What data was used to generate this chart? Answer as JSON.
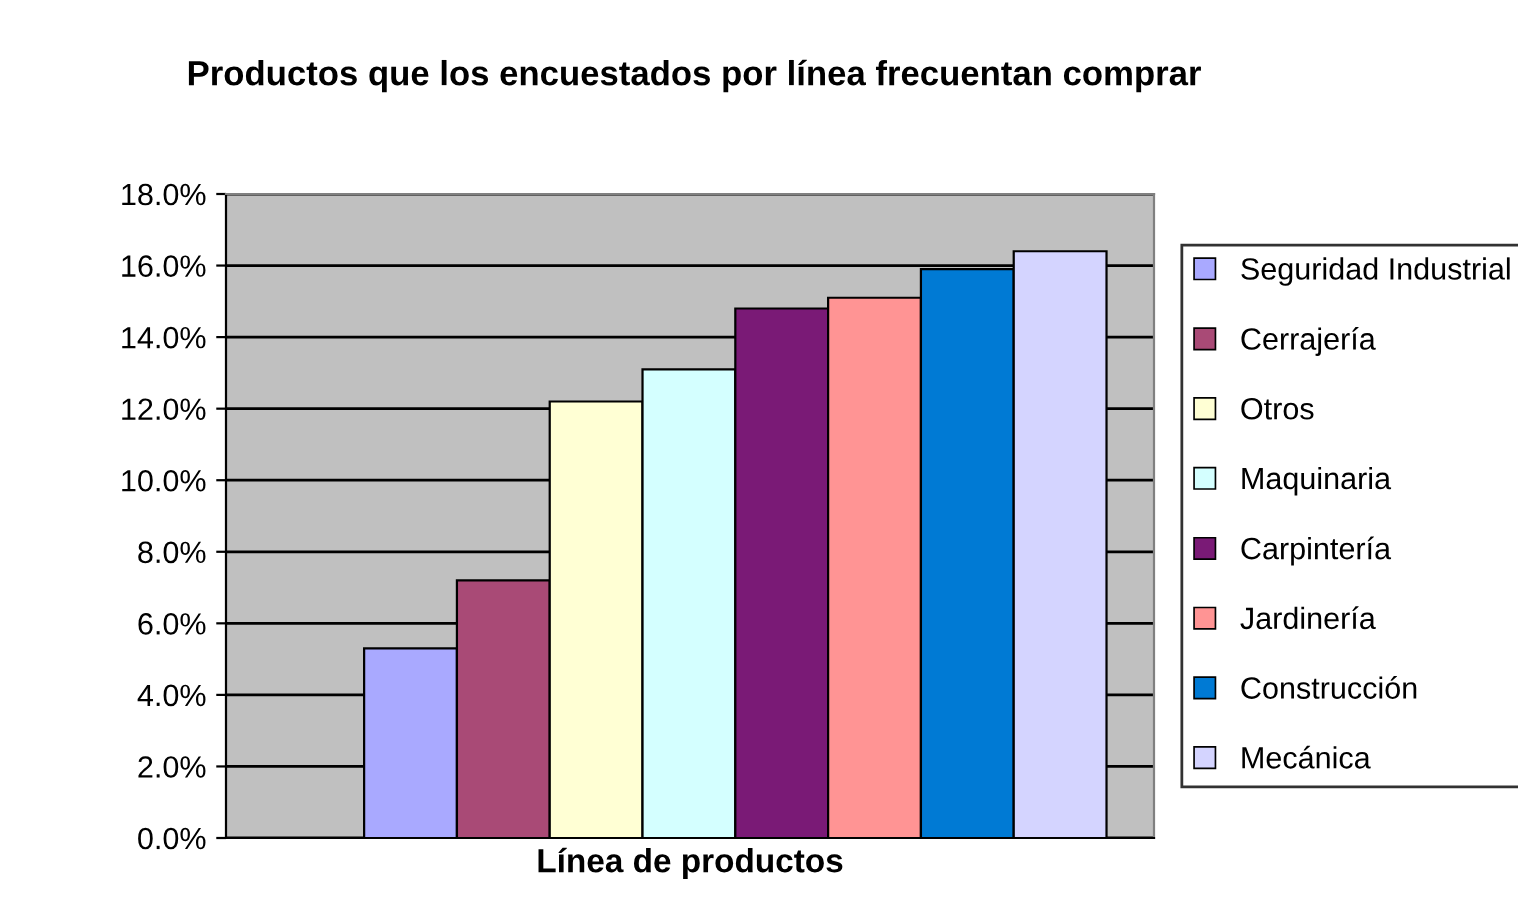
{
  "chart_data": {
    "type": "bar",
    "title": "Productos que los encuestados por línea frecuentan comprar",
    "xlabel": "Línea de productos",
    "categories": [
      null
    ],
    "series": [
      {
        "name": "Seguridad Industrial",
        "color": "#a9a9ff",
        "values": [
          5.3
        ]
      },
      {
        "name": "Cerrajería",
        "color": "#a94a76",
        "values": [
          7.2
        ]
      },
      {
        "name": "Otros",
        "color": "#ffffd4",
        "values": [
          12.2
        ]
      },
      {
        "name": "Maquinaria",
        "color": "#d4ffff",
        "values": [
          13.1
        ]
      },
      {
        "name": "Carpintería",
        "color": "#7a1a76",
        "values": [
          14.8
        ]
      },
      {
        "name": "Jardinería",
        "color": "#ff9494",
        "values": [
          15.1
        ]
      },
      {
        "name": "Construcción",
        "color": "#007ad4",
        "values": [
          15.9
        ]
      },
      {
        "name": "Mecánica",
        "color": "#d4d4ff",
        "values": [
          16.4
        ]
      }
    ],
    "ylim": [
      0,
      18
    ],
    "yticks": [
      {
        "value": 0,
        "label": "0.0%"
      },
      {
        "value": 2,
        "label": "2.0%"
      },
      {
        "value": 4,
        "label": "4.0%"
      },
      {
        "value": 6,
        "label": "6.0%"
      },
      {
        "value": 8,
        "label": "8.0%"
      },
      {
        "value": 10,
        "label": "10.0%"
      },
      {
        "value": 12,
        "label": "12.0%"
      },
      {
        "value": 14,
        "label": "14.0%"
      },
      {
        "value": 16,
        "label": "16.0%"
      },
      {
        "value": 18,
        "label": "18.0%"
      }
    ],
    "grid": "y",
    "legend": "right"
  }
}
